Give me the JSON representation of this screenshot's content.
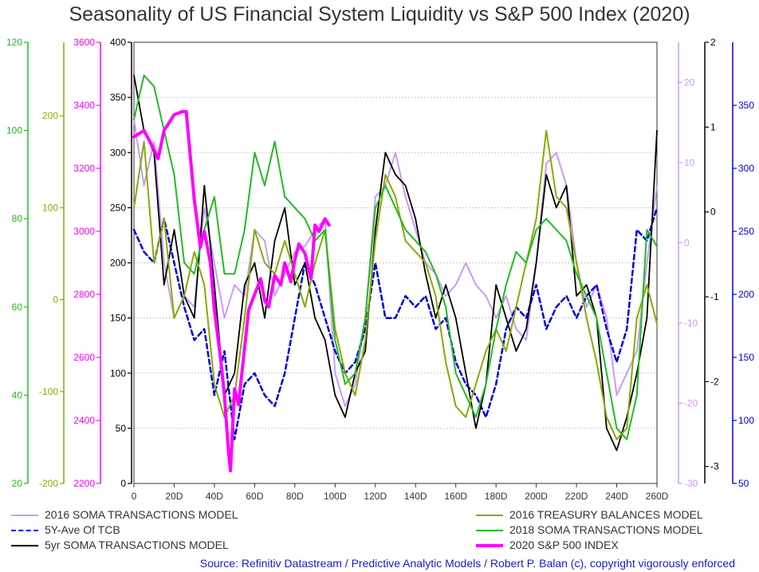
{
  "chart_data": {
    "type": "line",
    "title": "Seasonality of US Financial System Liquidity vs S&P 500 Index (2020)",
    "xlabel": "",
    "ylabel": "",
    "x_ticks": [
      "0",
      "20D",
      "40D",
      "60D",
      "80D",
      "100D",
      "120D",
      "140D",
      "160D",
      "180D",
      "200D",
      "220D",
      "240D",
      "260D"
    ],
    "xlim": [
      0,
      260
    ],
    "grid": "horizontal",
    "axes": [
      {
        "id": "ax_green",
        "side": "left",
        "color": "#22bb22",
        "ticks": [
          "120",
          "100",
          "80",
          "60",
          "40",
          "20"
        ],
        "ylim": [
          20,
          120
        ]
      },
      {
        "id": "ax_olive",
        "side": "left",
        "color": "#88aa00",
        "ticks": [
          "200",
          "100",
          "0",
          "-100",
          "-200"
        ],
        "ylim": [
          -200,
          280
        ]
      },
      {
        "id": "ax_magenta",
        "side": "left",
        "color": "#ff00ff",
        "ticks": [
          "3600",
          "3400",
          "3200",
          "3000",
          "2800",
          "2600",
          "2400",
          "2200"
        ],
        "ylim": [
          2200,
          3600
        ]
      },
      {
        "id": "ax_black_left",
        "side": "left",
        "color": "#000000",
        "ticks": [
          "400",
          "350",
          "300",
          "250",
          "200",
          "150",
          "100",
          "50",
          "0"
        ],
        "ylim": [
          0,
          400
        ]
      },
      {
        "id": "ax_lavender",
        "side": "right",
        "color": "#cc99ff",
        "ticks": [
          "20",
          "10",
          "0",
          "-10",
          "-20",
          "-30"
        ],
        "ylim": [
          -30,
          25
        ]
      },
      {
        "id": "ax_black_right",
        "side": "right",
        "color": "#000000",
        "ticks": [
          "2",
          "1",
          "0",
          "-1",
          "-2",
          "-3"
        ],
        "ylim": [
          -3.2,
          2
        ]
      },
      {
        "id": "ax_blue",
        "side": "right",
        "color": "#0000cc",
        "ticks": [
          "350",
          "300",
          "250",
          "200",
          "150",
          "100",
          "50"
        ],
        "ylim": [
          50,
          400
        ]
      }
    ],
    "series": [
      {
        "name": "2016 SOMA TRANSACTIONS MODEL",
        "color": "#cc99ff",
        "width": 2,
        "dash": "",
        "axis": "ax_black_left",
        "x": [
          0,
          5,
          10,
          15,
          20,
          25,
          30,
          35,
          40,
          45,
          50,
          55,
          60,
          65,
          70,
          75,
          80,
          85,
          90,
          95,
          100,
          105,
          110,
          115,
          120,
          125,
          130,
          135,
          140,
          145,
          150,
          155,
          160,
          165,
          170,
          175,
          180,
          185,
          190,
          195,
          200,
          205,
          210,
          215,
          220,
          225,
          230,
          235,
          240,
          245,
          250,
          255,
          260
        ],
        "y": [
          330,
          270,
          310,
          200,
          150,
          170,
          160,
          250,
          200,
          150,
          180,
          170,
          230,
          220,
          170,
          190,
          210,
          215,
          230,
          240,
          100,
          70,
          90,
          150,
          260,
          270,
          300,
          260,
          230,
          200,
          190,
          170,
          180,
          200,
          180,
          170,
          150,
          170,
          140,
          130,
          200,
          290,
          300,
          270,
          200,
          160,
          180,
          150,
          80,
          100,
          120,
          200,
          270
        ]
      },
      {
        "name": "5Y-Ave Of TCB",
        "color": "#0000dd",
        "width": 2.5,
        "dash": "6,4",
        "axis": "ax_black_left",
        "x": [
          0,
          5,
          10,
          15,
          20,
          25,
          30,
          35,
          40,
          45,
          50,
          55,
          60,
          65,
          70,
          75,
          80,
          85,
          90,
          95,
          100,
          105,
          110,
          115,
          120,
          125,
          130,
          135,
          140,
          145,
          150,
          155,
          160,
          165,
          170,
          175,
          180,
          185,
          190,
          195,
          200,
          205,
          210,
          215,
          220,
          225,
          230,
          235,
          240,
          245,
          250,
          255,
          260
        ],
        "y": [
          230,
          210,
          200,
          240,
          200,
          160,
          130,
          140,
          80,
          120,
          40,
          90,
          100,
          80,
          70,
          100,
          150,
          200,
          180,
          150,
          120,
          100,
          110,
          140,
          200,
          150,
          150,
          170,
          160,
          170,
          140,
          150,
          110,
          90,
          80,
          60,
          90,
          140,
          160,
          150,
          180,
          140,
          160,
          170,
          150,
          170,
          180,
          140,
          110,
          140,
          230,
          220,
          250
        ]
      },
      {
        "name": "5yr SOMA TRANSACTIONS MODEL",
        "color": "#000000",
        "width": 1.8,
        "dash": "",
        "axis": "ax_black_left",
        "x": [
          0,
          5,
          10,
          15,
          20,
          25,
          30,
          35,
          40,
          45,
          50,
          55,
          60,
          65,
          70,
          75,
          80,
          85,
          90,
          95,
          100,
          105,
          110,
          115,
          120,
          125,
          130,
          135,
          140,
          145,
          150,
          155,
          160,
          165,
          170,
          175,
          180,
          185,
          190,
          195,
          200,
          205,
          210,
          215,
          220,
          225,
          230,
          235,
          240,
          245,
          250,
          255,
          260
        ],
        "y": [
          370,
          320,
          300,
          180,
          230,
          170,
          150,
          270,
          180,
          80,
          100,
          180,
          200,
          150,
          220,
          250,
          180,
          200,
          150,
          130,
          80,
          60,
          100,
          120,
          230,
          300,
          280,
          270,
          240,
          190,
          150,
          180,
          150,
          100,
          50,
          90,
          180,
          150,
          120,
          140,
          200,
          280,
          250,
          270,
          170,
          180,
          150,
          50,
          30,
          60,
          100,
          150,
          320
        ]
      },
      {
        "name": "2016 TREASURY BALANCES MODEL",
        "color": "#88aa00",
        "width": 2,
        "dash": "",
        "axis": "ax_black_left",
        "x": [
          0,
          5,
          10,
          15,
          20,
          25,
          30,
          35,
          40,
          45,
          50,
          55,
          60,
          65,
          70,
          75,
          80,
          85,
          90,
          95,
          100,
          105,
          110,
          115,
          120,
          125,
          130,
          135,
          140,
          145,
          150,
          155,
          160,
          165,
          170,
          175,
          180,
          185,
          190,
          195,
          200,
          205,
          210,
          215,
          220,
          225,
          230,
          235,
          240,
          245,
          250,
          255,
          260
        ],
        "y": [
          250,
          310,
          200,
          240,
          150,
          170,
          210,
          180,
          90,
          60,
          80,
          150,
          230,
          200,
          190,
          220,
          190,
          160,
          200,
          230,
          140,
          100,
          80,
          130,
          220,
          280,
          260,
          220,
          210,
          200,
          170,
          110,
          70,
          60,
          90,
          120,
          140,
          120,
          160,
          200,
          240,
          320,
          260,
          250,
          200,
          150,
          110,
          60,
          40,
          50,
          150,
          180,
          145
        ]
      },
      {
        "name": "2018 SOMA TRANSACTIONS MODEL",
        "color": "#22bb22",
        "width": 2,
        "dash": "",
        "axis": "ax_black_left",
        "x": [
          0,
          5,
          10,
          15,
          20,
          25,
          30,
          35,
          40,
          45,
          50,
          55,
          60,
          65,
          70,
          75,
          80,
          85,
          90,
          95,
          100,
          105,
          110,
          115,
          120,
          125,
          130,
          135,
          140,
          145,
          150,
          155,
          160,
          165,
          170,
          175,
          180,
          185,
          190,
          195,
          200,
          205,
          210,
          215,
          220,
          225,
          230,
          235,
          240,
          245,
          250,
          255,
          260
        ],
        "y": [
          330,
          370,
          360,
          320,
          280,
          200,
          190,
          230,
          260,
          190,
          190,
          230,
          300,
          270,
          310,
          260,
          250,
          240,
          220,
          230,
          130,
          90,
          100,
          150,
          250,
          270,
          250,
          230,
          220,
          210,
          190,
          160,
          100,
          80,
          60,
          90,
          140,
          180,
          210,
          200,
          230,
          240,
          230,
          220,
          190,
          170,
          150,
          100,
          50,
          40,
          80,
          230,
          215
        ]
      },
      {
        "name": "2020 S&P 500 INDEX",
        "color": "#ff00ff",
        "width": 4,
        "dash": "",
        "axis": "ax_magenta",
        "x": [
          0,
          5,
          10,
          12,
          15,
          20,
          24,
          26,
          30,
          33,
          35,
          38,
          40,
          43,
          45,
          47,
          48,
          50,
          52,
          55,
          57,
          60,
          63,
          65,
          67,
          70,
          73,
          75,
          78,
          80,
          82,
          85,
          88,
          90,
          92,
          95,
          97
        ],
        "y": [
          3300,
          3320,
          3260,
          3230,
          3320,
          3370,
          3380,
          3380,
          3100,
          2950,
          3000,
          2900,
          2750,
          2600,
          2480,
          2300,
          2240,
          2500,
          2450,
          2630,
          2750,
          2800,
          2850,
          2780,
          2760,
          2860,
          2830,
          2900,
          2840,
          2910,
          2960,
          2930,
          2850,
          3020,
          3000,
          3040,
          3020
        ]
      }
    ]
  },
  "source_note": "Source: Refinitiv Datastream / Predictive Analytic Models / Robert P. Balan (c), copyright vigorously enforced"
}
